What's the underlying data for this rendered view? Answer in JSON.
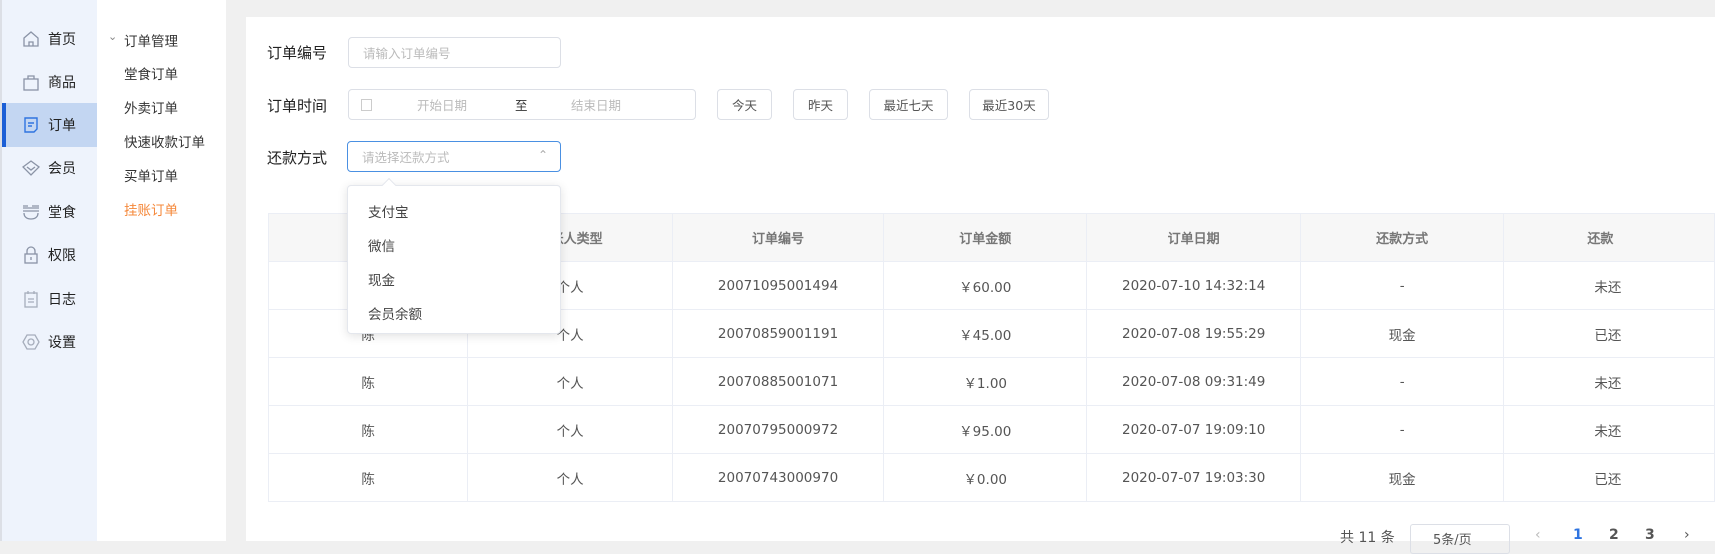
{
  "sidebar": {
    "items": [
      {
        "label": "首页",
        "icon": "home-icon"
      },
      {
        "label": "商品",
        "icon": "shopping-bag-icon"
      },
      {
        "label": "订单",
        "icon": "order-document-icon",
        "active": true
      },
      {
        "label": "会员",
        "icon": "diamond-icon"
      },
      {
        "label": "堂食",
        "icon": "bowl-icon"
      },
      {
        "label": "权限",
        "icon": "lock-icon"
      },
      {
        "label": "日志",
        "icon": "clipboard-icon"
      },
      {
        "label": "设置",
        "icon": "settings-hexagon-icon"
      }
    ],
    "accent": "#1c5fd6"
  },
  "submenu": {
    "group": "订单管理",
    "items": [
      "堂食订单",
      "外卖订单",
      "快速收款订单",
      "买单订单",
      "挂账订单"
    ],
    "active_index": 4,
    "active_color": "#f5883a"
  },
  "filters": {
    "order_no_label": "订单编号",
    "order_no_placeholder": "请输入订单编号",
    "time_label": "订单时间",
    "start_placeholder": "开始日期",
    "range_sep": "至",
    "end_placeholder": "结束日期",
    "quick": [
      "今天",
      "昨天",
      "最近七天",
      "最近30天"
    ],
    "repay_label": "还款方式",
    "repay_placeholder": "请选择还款方式",
    "repay_options": [
      "支付宝",
      "微信",
      "现金",
      "会员余额"
    ]
  },
  "table": {
    "headers": [
      "",
      "挂账人类型",
      "订单编号",
      "订单金额",
      "订单日期",
      "还款方式",
      "还款"
    ],
    "rows": [
      [
        "",
        "个人",
        "20071095001494",
        "￥60.00",
        "2020-07-10 14:32:14",
        "-",
        "未还"
      ],
      [
        "陈",
        "个人",
        "20070859001191",
        "￥45.00",
        "2020-07-08 19:55:29",
        "现金",
        "已还"
      ],
      [
        "陈",
        "个人",
        "20070885001071",
        "￥1.00",
        "2020-07-08 09:31:49",
        "-",
        "未还"
      ],
      [
        "陈",
        "个人",
        "20070795000972",
        "￥95.00",
        "2020-07-07 19:09:10",
        "-",
        "未还"
      ],
      [
        "陈",
        "个人",
        "20070743000970",
        "￥0.00",
        "2020-07-07 19:03:30",
        "现金",
        "已还"
      ]
    ]
  },
  "pagination": {
    "total": "共 11 条",
    "page_size": "5条/页",
    "pages": [
      "1",
      "2",
      "3"
    ],
    "current": "1"
  }
}
